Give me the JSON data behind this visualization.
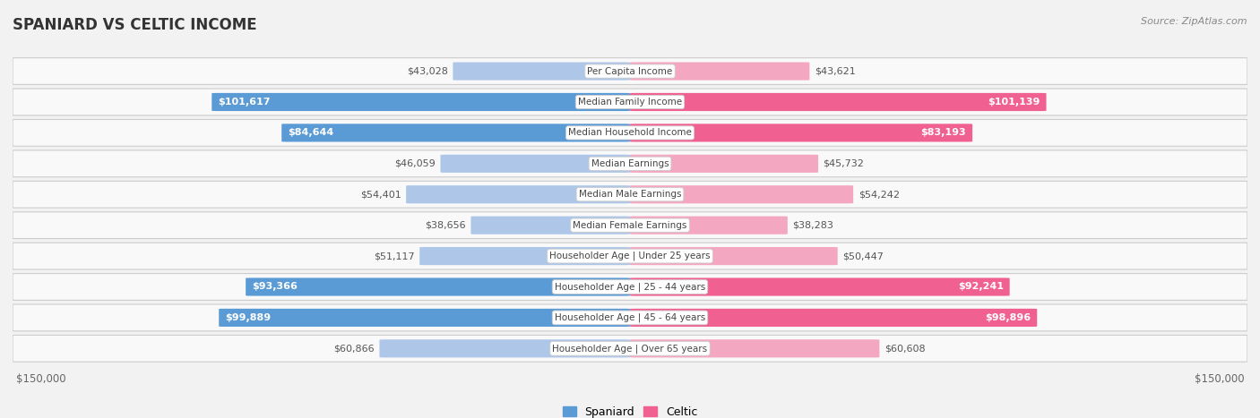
{
  "title": "SPANIARD VS CELTIC INCOME",
  "source": "Source: ZipAtlas.com",
  "categories": [
    "Per Capita Income",
    "Median Family Income",
    "Median Household Income",
    "Median Earnings",
    "Median Male Earnings",
    "Median Female Earnings",
    "Householder Age | Under 25 years",
    "Householder Age | 25 - 44 years",
    "Householder Age | 45 - 64 years",
    "Householder Age | Over 65 years"
  ],
  "spaniard_values": [
    43028,
    101617,
    84644,
    46059,
    54401,
    38656,
    51117,
    93366,
    99889,
    60866
  ],
  "celtic_values": [
    43621,
    101139,
    83193,
    45732,
    54242,
    38283,
    50447,
    92241,
    98896,
    60608
  ],
  "spaniard_labels": [
    "$43,028",
    "$101,617",
    "$84,644",
    "$46,059",
    "$54,401",
    "$38,656",
    "$51,117",
    "$93,366",
    "$99,889",
    "$60,866"
  ],
  "celtic_labels": [
    "$43,621",
    "$101,139",
    "$83,193",
    "$45,732",
    "$54,242",
    "$38,283",
    "$50,447",
    "$92,241",
    "$98,896",
    "$60,608"
  ],
  "max_value": 150000,
  "spaniard_color_light": "#aec6e8",
  "spaniard_color_dark": "#5b9bd5",
  "celtic_color_light": "#f4a7c0",
  "celtic_color_dark": "#f06090",
  "bg_color": "#f2f2f2",
  "row_bg_color": "#f9f9f9",
  "threshold": 70000,
  "legend_spaniard": "Spaniard",
  "legend_celtic": "Celtic",
  "title_fontsize": 12,
  "source_fontsize": 8,
  "label_fontsize": 8,
  "cat_fontsize": 7.5
}
